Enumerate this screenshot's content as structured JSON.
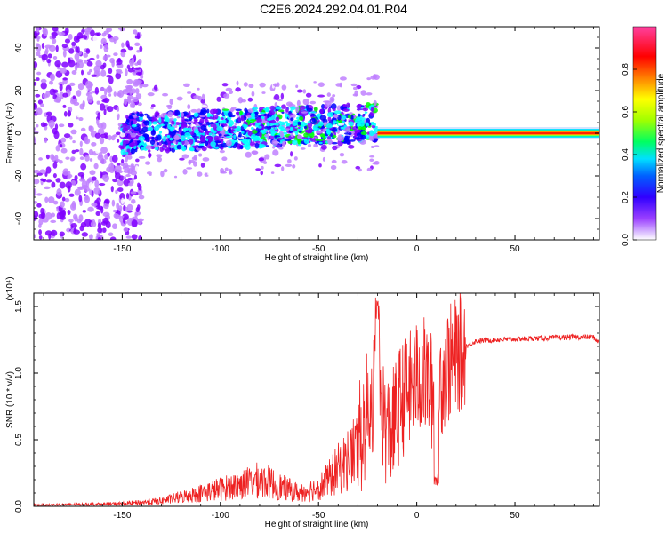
{
  "title": "C2E6.2024.292.04.01.R04",
  "chart_data": [
    {
      "type": "heatmap",
      "xlabel": "Height of straight line (km)",
      "ylabel": "Frequency (Hz)",
      "xlim": [
        -195,
        93
      ],
      "ylim": [
        -50,
        50
      ],
      "x_ticks": [
        "-150",
        "-100",
        "-50",
        "0",
        "50"
      ],
      "x_tick_values": [
        -150,
        -100,
        -50,
        0,
        50
      ],
      "y_ticks": [
        "-40",
        "-20",
        "0",
        "20",
        "40"
      ],
      "y_tick_values": [
        -40,
        -20,
        0,
        20,
        40
      ],
      "grid": false,
      "colorbar": {
        "label": "Normalized spectral amplitude",
        "range": [
          0,
          1
        ],
        "ticks": [
          "0.0",
          "0.2",
          "0.4",
          "0.6",
          "0.8"
        ],
        "tick_values": [
          0.0,
          0.2,
          0.4,
          0.6,
          0.8
        ],
        "colors": [
          "#ffffff",
          "#c080ff",
          "#8000ff",
          "#0000ff",
          "#00ffff",
          "#00ff00",
          "#ffff00",
          "#ff8000",
          "#ff0000",
          "#ff00ff"
        ]
      },
      "features": [
        {
          "region": "scattered noise",
          "x_range": [
            -195,
            -150
          ],
          "freq_spread": 50,
          "amplitude": 0.15
        },
        {
          "region": "noisy band",
          "x_range": [
            -150,
            -20
          ],
          "freq_spread": 10,
          "amplitude": 0.3
        },
        {
          "region": "stable line",
          "x_range": [
            -20,
            93
          ],
          "freq": 0,
          "amplitude": 0.95
        }
      ]
    },
    {
      "type": "line",
      "xlabel": "Height of straight line (km)",
      "ylabel": "SNR (10 * v/v)",
      "y_multiplier": "(x10⁴)",
      "xlim": [
        -195,
        93
      ],
      "ylim": [
        0,
        1.6
      ],
      "x_ticks": [
        "-150",
        "-100",
        "-50",
        "0",
        "50"
      ],
      "x_tick_values": [
        -150,
        -100,
        -50,
        0,
        50
      ],
      "y_ticks": [
        "0.0",
        "0.5",
        "1.0",
        "1.5"
      ],
      "y_tick_values": [
        0.0,
        0.5,
        1.0,
        1.5
      ],
      "color": "#ee2222",
      "grid": false,
      "envelope": {
        "x": [
          -195,
          -170,
          -150,
          -130,
          -120,
          -110,
          -100,
          -90,
          -80,
          -75,
          -70,
          -60,
          -50,
          -45,
          -40,
          -35,
          -30,
          -27,
          -25,
          -22,
          -20,
          -18,
          -15,
          -12,
          -10,
          -8,
          -5,
          -2,
          0,
          3,
          5,
          8,
          10,
          12,
          15,
          20,
          25,
          30,
          40,
          60,
          80,
          90,
          93
        ],
        "y": [
          0.01,
          0.015,
          0.02,
          0.04,
          0.07,
          0.1,
          0.13,
          0.16,
          0.2,
          0.18,
          0.15,
          0.1,
          0.14,
          0.2,
          0.28,
          0.35,
          0.45,
          0.6,
          0.75,
          0.85,
          1.0,
          0.75,
          0.55,
          0.6,
          0.7,
          0.8,
          0.85,
          0.9,
          0.95,
          1.0,
          0.95,
          0.85,
          0.7,
          0.95,
          1.05,
          1.12,
          1.2,
          1.24,
          1.25,
          1.26,
          1.27,
          1.27,
          1.22
        ]
      }
    }
  ]
}
